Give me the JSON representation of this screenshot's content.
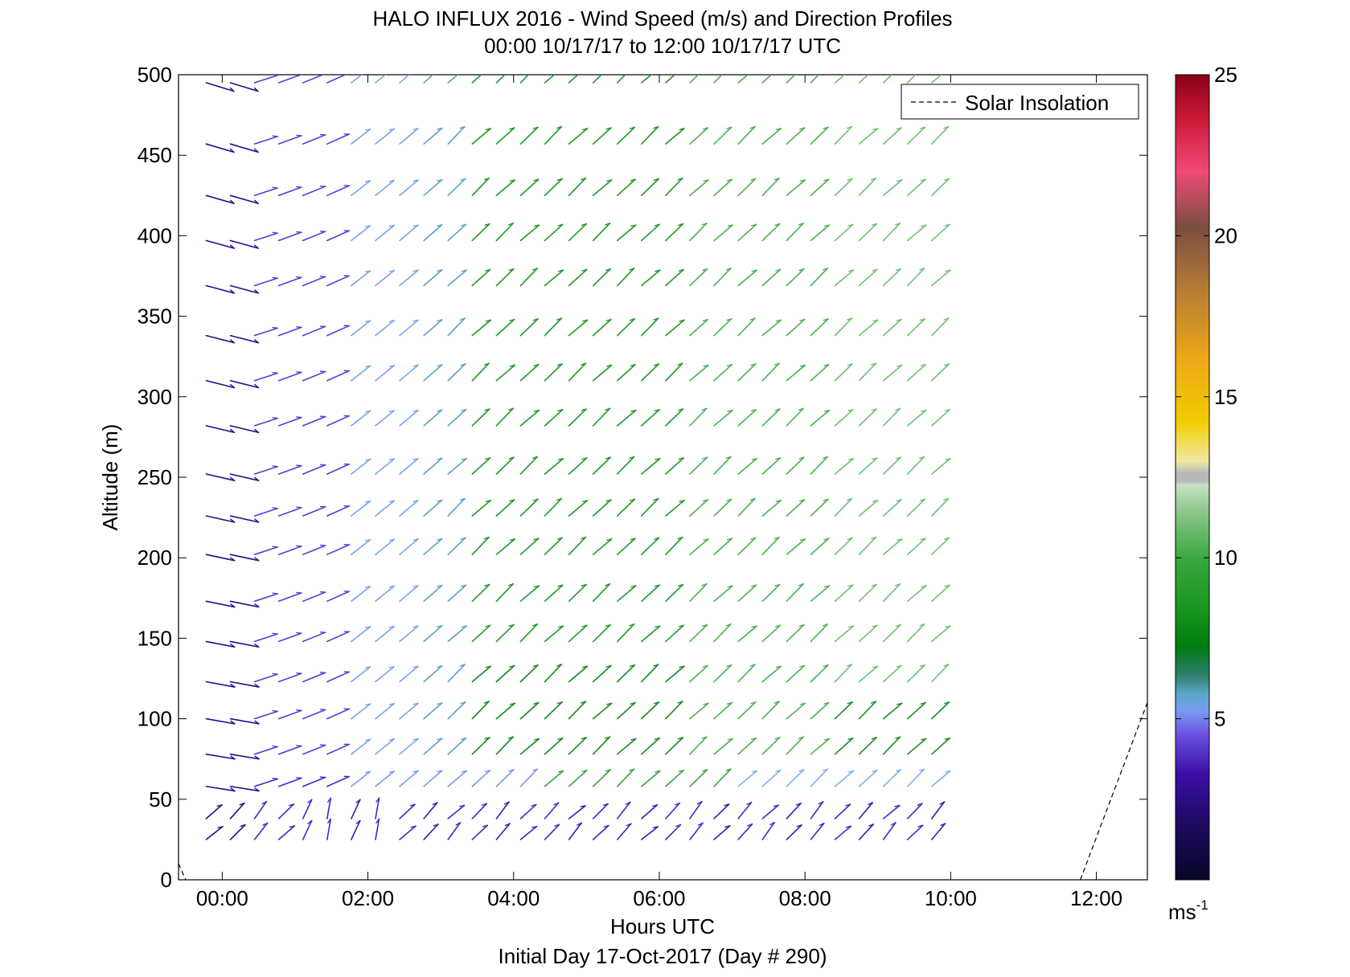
{
  "chart_data": {
    "type": "quiver",
    "title": "HALO INFLUX 2016 - Wind Speed (m/s) and Direction Profiles",
    "subtitle": "00:00 10/17/17 to 12:00 10/17/17  UTC",
    "xlabel": "Hours UTC",
    "ylabel": "Altitude (m)",
    "footer": "Initial Day 17-Oct-2017 (Day # 290)",
    "xlim": [
      -0.6,
      12.7
    ],
    "ylim": [
      0,
      500
    ],
    "x_ticks": [
      0,
      2,
      4,
      6,
      8,
      10,
      12
    ],
    "x_tick_labels": [
      "00:00",
      "02:00",
      "04:00",
      "06:00",
      "08:00",
      "10:00",
      "12:00"
    ],
    "y_ticks": [
      0,
      50,
      100,
      150,
      200,
      250,
      300,
      350,
      400,
      450,
      500
    ],
    "y_tick_labels": [
      "0",
      "50",
      "100",
      "150",
      "200",
      "250",
      "300",
      "350",
      "400",
      "450",
      "500"
    ],
    "legend": {
      "label": "Solar Insolation",
      "position": "top-right"
    },
    "colorbar": {
      "min": 0,
      "max": 25,
      "ticks": [
        5,
        10,
        15,
        20,
        25
      ],
      "tick_labels": [
        "5",
        "10",
        "15",
        "20",
        "25"
      ],
      "unit": "ms",
      "unit_exponent": "-1"
    },
    "altitudes": [
      25,
      38,
      58,
      78,
      100,
      123,
      148,
      173,
      202,
      226,
      252,
      282,
      310,
      338,
      369,
      397,
      425,
      457,
      495
    ],
    "time_start": -0.22,
    "time_step": 0.332,
    "time_count": 31,
    "solar_insolation": {
      "x": [
        11.78,
        12.7
      ],
      "y": [
        0,
        110
      ]
    },
    "solar_insolation_left": {
      "x": [
        -0.6,
        -0.5
      ],
      "y": [
        10,
        0
      ]
    }
  }
}
